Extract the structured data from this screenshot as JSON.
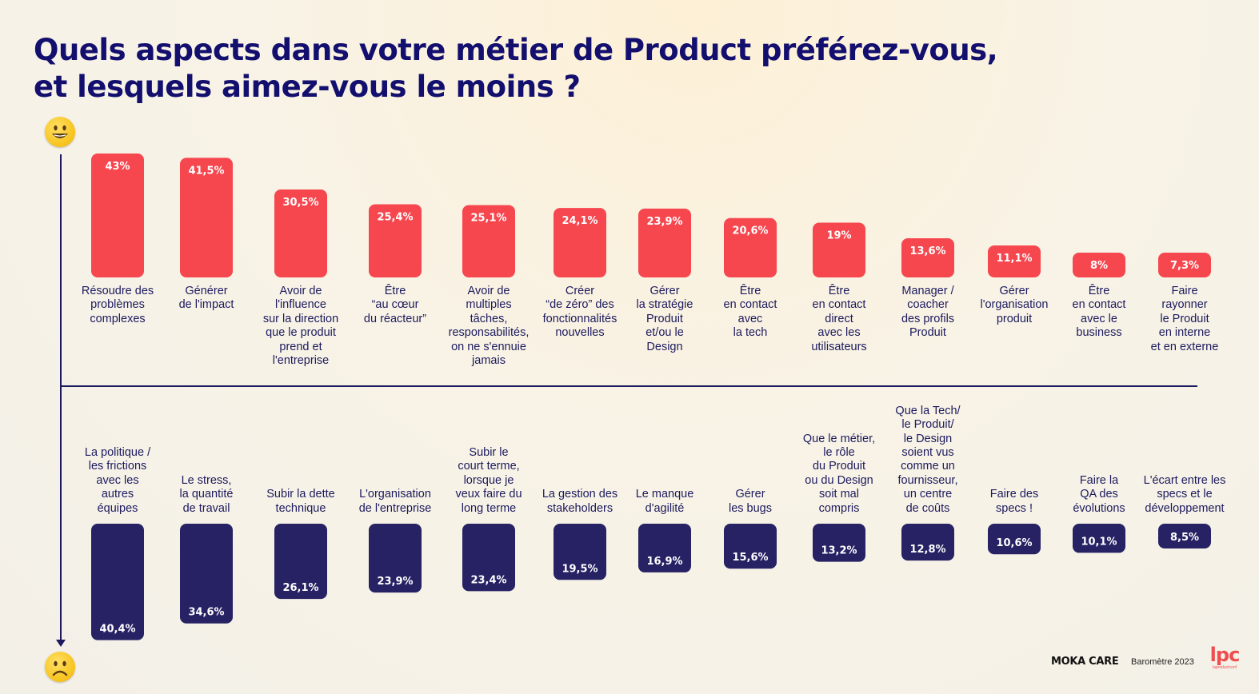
{
  "title": {
    "line1": "Quels aspects dans votre métier de Product préférez-vous,",
    "line2": "et lesquels aimez-vous le moins ?"
  },
  "icons": {
    "top": "smiling-face-icon",
    "bottom": "frowning-face-icon"
  },
  "colors": {
    "liked": "#f6474f",
    "disliked": "#262264",
    "axis": "#1c1a5e",
    "title": "#130f6e"
  },
  "footer": {
    "brand": "MOKA CARE",
    "survey": "Baromètre 2023",
    "logo": "lpc",
    "logo_sub": "laproductconf"
  },
  "chart_data": [
    {
      "type": "bar",
      "group": "liked",
      "categories": [
        "Résoudre des\nproblèmes\ncomplexes",
        "Générer\nde l'impact",
        "Avoir de\nl'influence\nsur la direction\nque le produit\nprend et\nl'entreprise",
        "Être\n“au cœur\ndu réacteur”",
        "Avoir de\nmultiples\ntâches,\nresponsabilités,\non ne s'ennuie\njamais",
        "Créer\n“de zéro” des\nfonctionnalités\nnouvelles",
        "Gérer\nla stratégie\nProduit\net/ou le\nDesign",
        "Être\nen contact\navec\nla tech",
        "Être\nen contact\ndirect\navec les\nutilisateurs",
        "Manager /\ncoacher\ndes profils\nProduit",
        "Gérer\nl'organisation\nproduit",
        "Être\nen contact\navec le\nbusiness",
        "Faire\nrayonner\nle Produit\nen interne\net en externe"
      ],
      "values": [
        43,
        41.5,
        30.5,
        25.4,
        25.1,
        24.1,
        23.9,
        20.6,
        19,
        13.6,
        11.1,
        8,
        7.3
      ],
      "labels": [
        "43%",
        "41,5%",
        "30,5%",
        "25,4%",
        "25,1%",
        "24,1%",
        "23,9%",
        "20,6%",
        "19%",
        "13,6%",
        "11,1%",
        "8%",
        "7,3%"
      ]
    },
    {
      "type": "bar",
      "group": "disliked",
      "categories": [
        "La politique /\nles frictions\navec les\nautres\néquipes",
        "Le stress,\nla quantité\nde travail",
        "Subir la dette\ntechnique",
        "L'organisation\nde l'entreprise",
        "Subir le\ncourt terme,\nlorsque je\nveux faire du\nlong terme",
        "La gestion des\nstakeholders",
        "Le manque\nd'agilité",
        "Gérer\nles bugs",
        "Que le métier,\nle rôle\ndu Produit\nou du Design\nsoit mal\ncompris",
        "Que la Tech/\nle Produit/\nle Design\nsoient vus\ncomme un\nfournisseur,\nun centre\nde coûts",
        "Faire des\nspecs !",
        "Faire la\nQA des\névolutions",
        "L'écart entre les\nspecs et le\ndéveloppement"
      ],
      "values": [
        40.4,
        34.6,
        26.1,
        23.9,
        23.4,
        19.5,
        16.9,
        15.6,
        13.2,
        12.8,
        10.6,
        10.1,
        8.5
      ],
      "labels": [
        "40,4%",
        "34,6%",
        "26,1%",
        "23,9%",
        "23,4%",
        "19,5%",
        "16,9%",
        "15,6%",
        "13,2%",
        "12,8%",
        "10,6%",
        "10,1%",
        "8,5%"
      ]
    }
  ]
}
